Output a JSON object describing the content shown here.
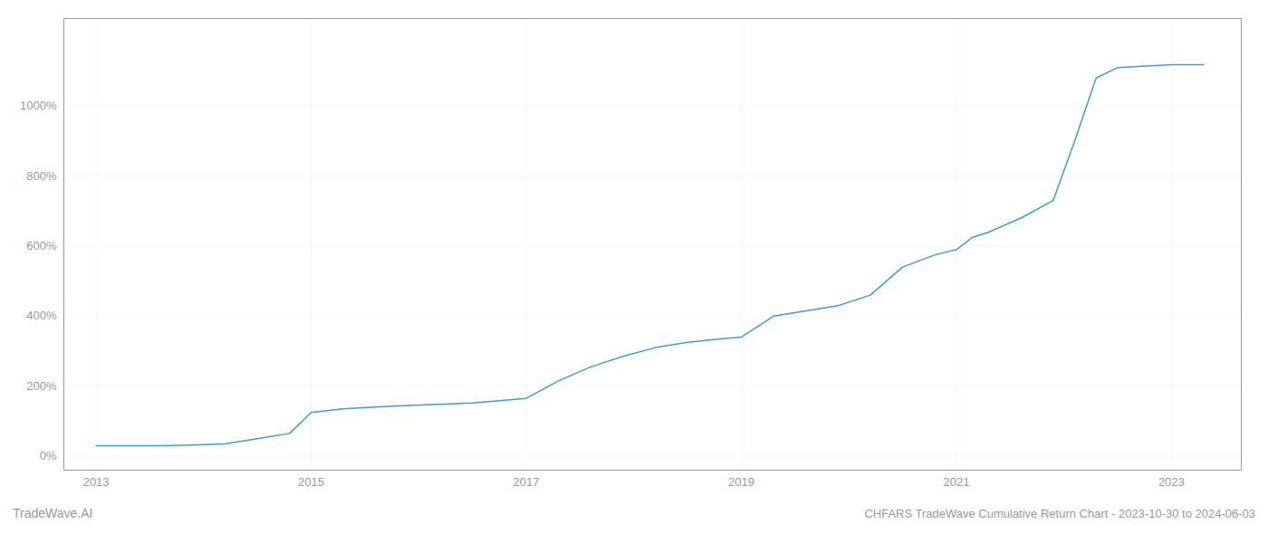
{
  "chart_data": {
    "type": "line",
    "title": "CHFARS TradeWave Cumulative Return Chart - 2023-10-30 to 2024-06-03",
    "annotations": [
      "TradeWave.AI"
    ],
    "x": [
      2013.0,
      2013.3,
      2013.6,
      2013.9,
      2014.2,
      2014.5,
      2014.8,
      2015.0,
      2015.3,
      2015.6,
      2015.9,
      2016.2,
      2016.5,
      2016.8,
      2017.0,
      2017.3,
      2017.6,
      2017.9,
      2018.2,
      2018.5,
      2018.8,
      2019.0,
      2019.3,
      2019.6,
      2019.9,
      2020.2,
      2020.5,
      2020.8,
      2021.0,
      2021.15,
      2021.3,
      2021.6,
      2021.9,
      2022.1,
      2022.3,
      2022.5,
      2022.8,
      2023.0,
      2023.3
    ],
    "values": [
      30,
      30,
      30,
      32,
      35,
      50,
      65,
      125,
      135,
      140,
      145,
      148,
      152,
      160,
      165,
      215,
      255,
      285,
      310,
      325,
      335,
      340,
      400,
      415,
      430,
      460,
      540,
      575,
      590,
      625,
      640,
      680,
      730,
      900,
      1080,
      1110,
      1115,
      1118,
      1118
    ],
    "color": "#3a9fd4",
    "xlim": [
      2012.7,
      2023.65
    ],
    "xticks": [
      2013,
      2015,
      2017,
      2019,
      2021,
      2023
    ],
    "ylim": [
      -40,
      1250
    ],
    "yticks": [
      {
        "value": 0,
        "label": "0%"
      },
      {
        "value": 200,
        "label": "200%"
      },
      {
        "value": 400,
        "label": "400%"
      },
      {
        "value": 600,
        "label": "600%"
      },
      {
        "value": 800,
        "label": "800%"
      },
      {
        "value": 1000,
        "label": "1000%"
      }
    ],
    "grid": true
  }
}
